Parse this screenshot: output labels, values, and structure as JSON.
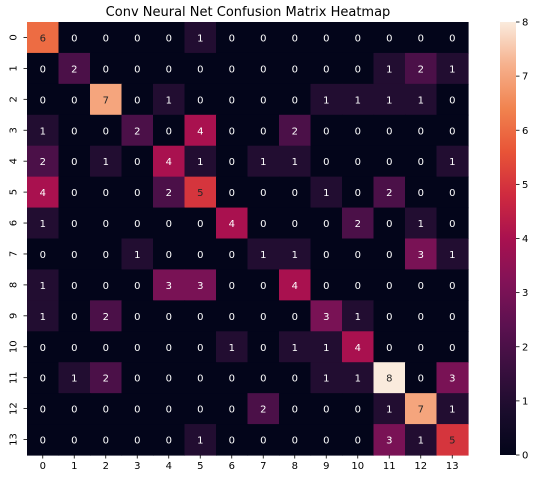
{
  "chart_data": {
    "type": "heatmap",
    "title": "Conv Neural Net Confusion Matrix Heatmap",
    "xlabel": "",
    "ylabel": "",
    "x_labels": [
      "0",
      "1",
      "2",
      "3",
      "4",
      "5",
      "6",
      "7",
      "8",
      "9",
      "10",
      "11",
      "12",
      "13"
    ],
    "y_labels": [
      "0",
      "1",
      "2",
      "3",
      "4",
      "5",
      "6",
      "7",
      "8",
      "9",
      "10",
      "11",
      "12",
      "13"
    ],
    "values": [
      [
        6,
        0,
        0,
        0,
        0,
        1,
        0,
        0,
        0,
        0,
        0,
        0,
        0,
        0
      ],
      [
        0,
        2,
        0,
        0,
        0,
        0,
        0,
        0,
        0,
        0,
        0,
        1,
        2,
        1
      ],
      [
        0,
        0,
        7,
        0,
        1,
        0,
        0,
        0,
        0,
        1,
        1,
        1,
        1,
        0
      ],
      [
        1,
        0,
        0,
        2,
        0,
        4,
        0,
        0,
        2,
        0,
        0,
        0,
        0,
        0
      ],
      [
        2,
        0,
        1,
        0,
        4,
        1,
        0,
        1,
        1,
        0,
        0,
        0,
        0,
        1
      ],
      [
        4,
        0,
        0,
        0,
        2,
        5,
        0,
        0,
        0,
        1,
        0,
        2,
        0,
        0
      ],
      [
        1,
        0,
        0,
        0,
        0,
        0,
        4,
        0,
        0,
        0,
        2,
        0,
        1,
        0
      ],
      [
        0,
        0,
        0,
        1,
        0,
        0,
        0,
        1,
        1,
        0,
        0,
        0,
        3,
        1
      ],
      [
        1,
        0,
        0,
        0,
        3,
        3,
        0,
        0,
        4,
        0,
        0,
        0,
        0,
        0
      ],
      [
        1,
        0,
        2,
        0,
        0,
        0,
        0,
        0,
        0,
        3,
        1,
        0,
        0,
        0
      ],
      [
        0,
        0,
        0,
        0,
        0,
        0,
        1,
        0,
        1,
        1,
        4,
        0,
        0,
        0
      ],
      [
        0,
        1,
        2,
        0,
        0,
        0,
        0,
        0,
        0,
        1,
        1,
        8,
        0,
        3
      ],
      [
        0,
        0,
        0,
        0,
        0,
        0,
        0,
        2,
        0,
        0,
        0,
        1,
        7,
        1
      ],
      [
        0,
        0,
        0,
        0,
        0,
        1,
        0,
        0,
        0,
        0,
        0,
        3,
        1,
        5
      ]
    ],
    "colorbar": {
      "min": 0,
      "max": 8,
      "ticks": [
        "0",
        "1",
        "2",
        "3",
        "4",
        "5",
        "6",
        "7",
        "8"
      ],
      "colormap": "rocket",
      "colors": [
        "#03051a",
        "#1a0c2c",
        "#3a0f3f",
        "#5c1150",
        "#821257",
        "#a9114f",
        "#cf2a3f",
        "#e85437",
        "#f1834f",
        "#f6b08c",
        "#faebdd"
      ]
    },
    "annotations": true,
    "grid": false
  }
}
